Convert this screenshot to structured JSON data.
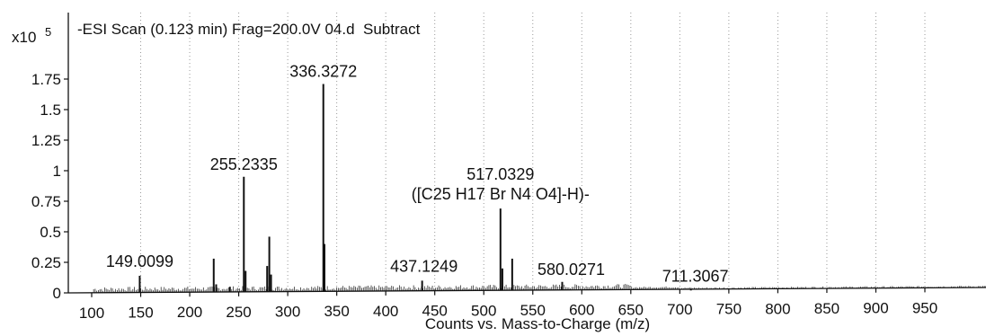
{
  "chart_data": {
    "type": "bar",
    "scan_label": "-ESI Scan (0.123 min) Frag=200.0V 04.d  Subtract",
    "y_multiplier_base": "x10",
    "y_multiplier_exp": "5",
    "xlabel": "Counts vs. Mass-to-Charge (m/z)",
    "ylabel": "",
    "xlim": [
      80,
      1100
    ],
    "ylim": [
      0,
      2.0
    ],
    "grid": "vertical dotted",
    "x_ticks": [
      100,
      150,
      200,
      250,
      300,
      350,
      400,
      450,
      500,
      550,
      600,
      650,
      700,
      750,
      800,
      850,
      900,
      950
    ],
    "y_ticks": [
      {
        "value": 0,
        "label": "0"
      },
      {
        "value": 0.25,
        "label": "0.25"
      },
      {
        "value": 0.5,
        "label": "0.5"
      },
      {
        "value": 0.75,
        "label": "0.75"
      },
      {
        "value": 1,
        "label": "1"
      },
      {
        "value": 1.25,
        "label": "1.25"
      },
      {
        "value": 1.5,
        "label": "1.5"
      },
      {
        "value": 1.75,
        "label": "1.75"
      }
    ],
    "peaks": [
      {
        "x": 149.0099,
        "y": 0.14
      },
      {
        "x": 224.5,
        "y": 0.28
      },
      {
        "x": 227.0,
        "y": 0.07
      },
      {
        "x": 241.0,
        "y": 0.05
      },
      {
        "x": 255.2335,
        "y": 0.95
      },
      {
        "x": 257.0,
        "y": 0.18
      },
      {
        "x": 279.0,
        "y": 0.22
      },
      {
        "x": 281.2,
        "y": 0.46
      },
      {
        "x": 283.0,
        "y": 0.15
      },
      {
        "x": 336.3272,
        "y": 1.71
      },
      {
        "x": 337.5,
        "y": 0.4
      },
      {
        "x": 437.1249,
        "y": 0.1
      },
      {
        "x": 517.0329,
        "y": 0.69
      },
      {
        "x": 519.0,
        "y": 0.2
      },
      {
        "x": 529.0,
        "y": 0.28
      },
      {
        "x": 580.0271,
        "y": 0.09
      },
      {
        "x": 711.3067,
        "y": 0.02
      }
    ],
    "annotations": [
      {
        "x": 336.3272,
        "y": 1.71,
        "label": "336.3272"
      },
      {
        "x": 255.2335,
        "y": 0.95,
        "label": "255.2335"
      },
      {
        "x": 149.0099,
        "y": 0.14,
        "label": "149.0099"
      },
      {
        "x": 437.1249,
        "y": 0.1,
        "label": "437.1249"
      },
      {
        "x": 517.0329,
        "y": 0.69,
        "label": "517.0329",
        "sublabel": "([C25 H17 Br N4 O4]-H)-"
      },
      {
        "x": 580.0271,
        "y": 0.09,
        "label": "580.0271"
      },
      {
        "x": 711.3067,
        "y": 0.02,
        "label": "711.3067"
      }
    ]
  }
}
